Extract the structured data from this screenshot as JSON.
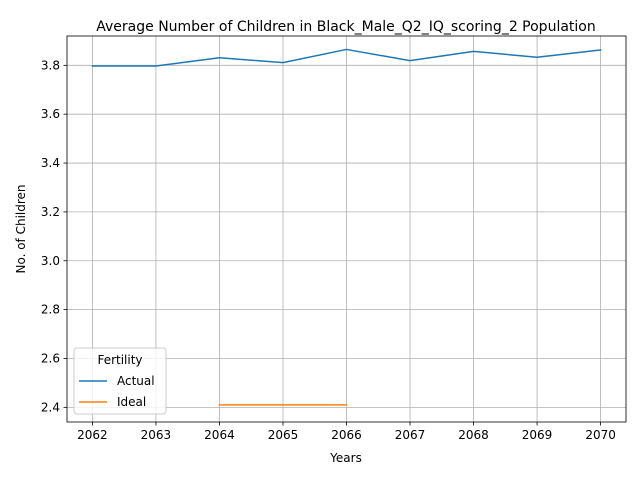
{
  "chart_data": {
    "type": "line",
    "title": "Average Number of Children in Black_Male_Q2_IQ_scoring_2 Population",
    "xlabel": "Years",
    "ylabel": "No. of Children",
    "xlim": [
      2061.6,
      2070.4
    ],
    "ylim": [
      2.34,
      3.92
    ],
    "xticks": [
      2062,
      2063,
      2064,
      2065,
      2066,
      2067,
      2068,
      2069,
      2070
    ],
    "yticks": [
      2.4,
      2.6,
      2.8,
      3.0,
      3.2,
      3.4,
      3.6,
      3.8
    ],
    "ytick_labels": [
      "2.4",
      "2.6",
      "2.8",
      "3.0",
      "3.2",
      "3.4",
      "3.6",
      "3.8"
    ],
    "grid": true,
    "legend": {
      "title": "Fertility",
      "position": "lower-left"
    },
    "series": [
      {
        "name": "Actual",
        "color": "#1f77b4",
        "x": [
          2062,
          2063,
          2064,
          2065,
          2066,
          2067,
          2068,
          2069,
          2070
        ],
        "y": [
          3.797,
          3.797,
          3.831,
          3.811,
          3.865,
          3.819,
          3.857,
          3.833,
          3.863
        ]
      },
      {
        "name": "Ideal",
        "color": "#ff7f0e",
        "x": [
          2064,
          2065,
          2066
        ],
        "y": [
          2.41,
          2.41,
          2.41
        ]
      }
    ]
  }
}
